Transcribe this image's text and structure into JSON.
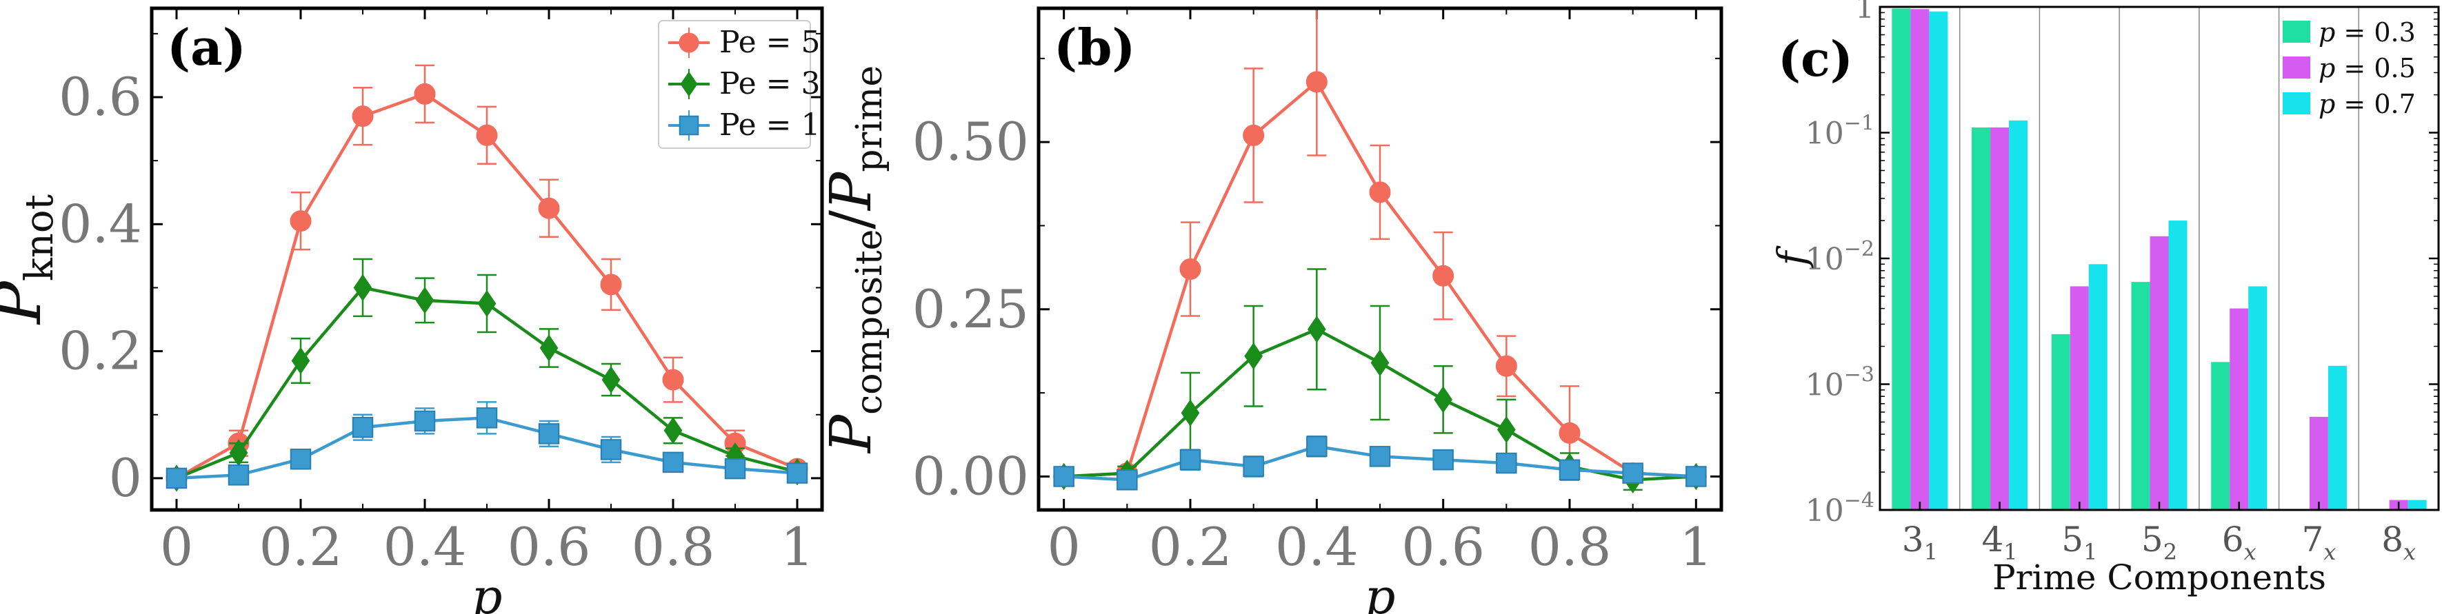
{
  "chart_data": [
    {
      "type": "line",
      "panel_label": "(a)",
      "xlabel": "p",
      "ylabel_main": "P",
      "ylabel_sub": "knot",
      "xlim": [
        -0.04,
        1.04
      ],
      "ylim": [
        -0.05,
        0.74
      ],
      "x_ticks": [
        0,
        0.2,
        0.4,
        0.6,
        0.8,
        1
      ],
      "x_tick_labels": [
        "0",
        "0.2",
        "0.4",
        "0.6",
        "0.8",
        "1"
      ],
      "y_ticks": [
        0,
        0.2,
        0.4,
        0.6
      ],
      "y_tick_labels": [
        "0",
        "0.2",
        "0.4",
        "0.6"
      ],
      "legend_position": "top-right",
      "x": [
        0,
        0.1,
        0.2,
        0.3,
        0.4,
        0.5,
        0.6,
        0.7,
        0.8,
        0.9,
        1.0
      ],
      "series": [
        {
          "name": "Pe = 5",
          "color": "#f26b5b",
          "marker": "circle",
          "values": [
            0.0,
            0.055,
            0.405,
            0.57,
            0.605,
            0.54,
            0.425,
            0.305,
            0.155,
            0.055,
            0.015
          ],
          "errors": [
            0.005,
            0.02,
            0.045,
            0.045,
            0.045,
            0.045,
            0.045,
            0.04,
            0.035,
            0.02,
            0.008
          ]
        },
        {
          "name": "Pe = 3",
          "color": "#1a8c1a",
          "marker": "diamond",
          "values": [
            0.0,
            0.04,
            0.185,
            0.3,
            0.28,
            0.275,
            0.205,
            0.155,
            0.075,
            0.035,
            0.01
          ],
          "errors": [
            0.005,
            0.015,
            0.035,
            0.045,
            0.035,
            0.045,
            0.03,
            0.025,
            0.02,
            0.012,
            0.005
          ]
        },
        {
          "name": "Pe = 1",
          "color": "#3b9bd0",
          "marker": "square",
          "values": [
            0.0,
            0.005,
            0.03,
            0.08,
            0.09,
            0.095,
            0.07,
            0.045,
            0.025,
            0.015,
            0.008
          ],
          "errors": [
            0.005,
            0.005,
            0.01,
            0.02,
            0.02,
            0.025,
            0.02,
            0.02,
            0.012,
            0.008,
            0.005
          ]
        }
      ]
    },
    {
      "type": "line",
      "panel_label": "(b)",
      "xlabel": "p",
      "ylabel_main": "P",
      "ylabel_sub1": "composite",
      "ylabel_slash": "/",
      "ylabel_main2": "P",
      "ylabel_sub2": "prime",
      "xlim": [
        -0.04,
        1.04
      ],
      "ylim": [
        -0.05,
        0.7
      ],
      "x_ticks": [
        0,
        0.2,
        0.4,
        0.6,
        0.8,
        1
      ],
      "x_tick_labels": [
        "0",
        "0.2",
        "0.4",
        "0.6",
        "0.8",
        "1"
      ],
      "y_ticks": [
        0,
        0.25,
        0.5
      ],
      "y_tick_labels": [
        "0.00",
        "0.25",
        "0.50"
      ],
      "x": [
        0,
        0.1,
        0.2,
        0.3,
        0.4,
        0.5,
        0.6,
        0.7,
        0.8,
        0.9,
        1.0
      ],
      "series": [
        {
          "name": "Pe = 5",
          "color": "#f26b5b",
          "marker": "circle",
          "values": [
            0.0,
            0.005,
            0.31,
            0.51,
            0.59,
            0.425,
            0.3,
            0.165,
            0.065,
            0.005,
            0.0
          ],
          "errors": [
            0.005,
            0.01,
            0.07,
            0.1,
            0.11,
            0.07,
            0.065,
            0.045,
            0.07,
            0.01,
            0.005
          ]
        },
        {
          "name": "Pe = 3",
          "color": "#1a8c1a",
          "marker": "diamond",
          "values": [
            0.0,
            0.005,
            0.095,
            0.18,
            0.22,
            0.17,
            0.115,
            0.07,
            0.015,
            -0.005,
            0.0
          ],
          "errors": [
            0.005,
            0.01,
            0.06,
            0.075,
            0.09,
            0.085,
            0.05,
            0.045,
            0.02,
            0.015,
            0.005
          ]
        },
        {
          "name": "Pe = 1",
          "color": "#3b9bd0",
          "marker": "square",
          "values": [
            0.0,
            -0.005,
            0.025,
            0.015,
            0.045,
            0.03,
            0.025,
            0.02,
            0.01,
            0.005,
            0.0
          ],
          "errors": [
            0.005,
            0.005,
            0.015,
            0.015,
            0.015,
            0.01,
            0.01,
            0.01,
            0.01,
            0.005,
            0.005
          ]
        }
      ]
    },
    {
      "type": "bar",
      "panel_label": "(c)",
      "xlabel": "Prime Components",
      "ylabel": "f",
      "y_scale": "log",
      "ylim": [
        0.0001,
        1
      ],
      "y_ticks": [
        0.0001,
        0.001,
        0.01,
        0.1,
        1
      ],
      "y_tick_labels": [
        {
          "base": "10",
          "exp": "−4"
        },
        {
          "base": "10",
          "exp": "−3"
        },
        {
          "base": "10",
          "exp": "−2"
        },
        {
          "base": "10",
          "exp": "−1"
        },
        {
          "base": "1",
          "exp": ""
        }
      ],
      "categories": [
        {
          "main": "3",
          "sub": "1"
        },
        {
          "main": "4",
          "sub": "1"
        },
        {
          "main": "5",
          "sub": "1"
        },
        {
          "main": "5",
          "sub": "2"
        },
        {
          "main": "6",
          "sub": "x"
        },
        {
          "main": "7",
          "sub": "x"
        },
        {
          "main": "8",
          "sub": "x"
        }
      ],
      "legend_position": "top-right",
      "series": [
        {
          "name_var": "p",
          "name_val": " = 0.3",
          "color": "#1fe0a0",
          "values": [
            0.97,
            0.11,
            0.0025,
            0.0065,
            0.0015,
            null,
            null
          ]
        },
        {
          "name_var": "p",
          "name_val": " = 0.5",
          "color": "#d45cf0",
          "values": [
            0.96,
            0.11,
            0.006,
            0.015,
            0.004,
            0.00055,
            0.00012
          ]
        },
        {
          "name_var": "p",
          "name_val": " = 0.7",
          "color": "#17e3ed",
          "values": [
            0.92,
            0.125,
            0.009,
            0.02,
            0.006,
            0.0014,
            0.00012
          ]
        }
      ]
    }
  ]
}
